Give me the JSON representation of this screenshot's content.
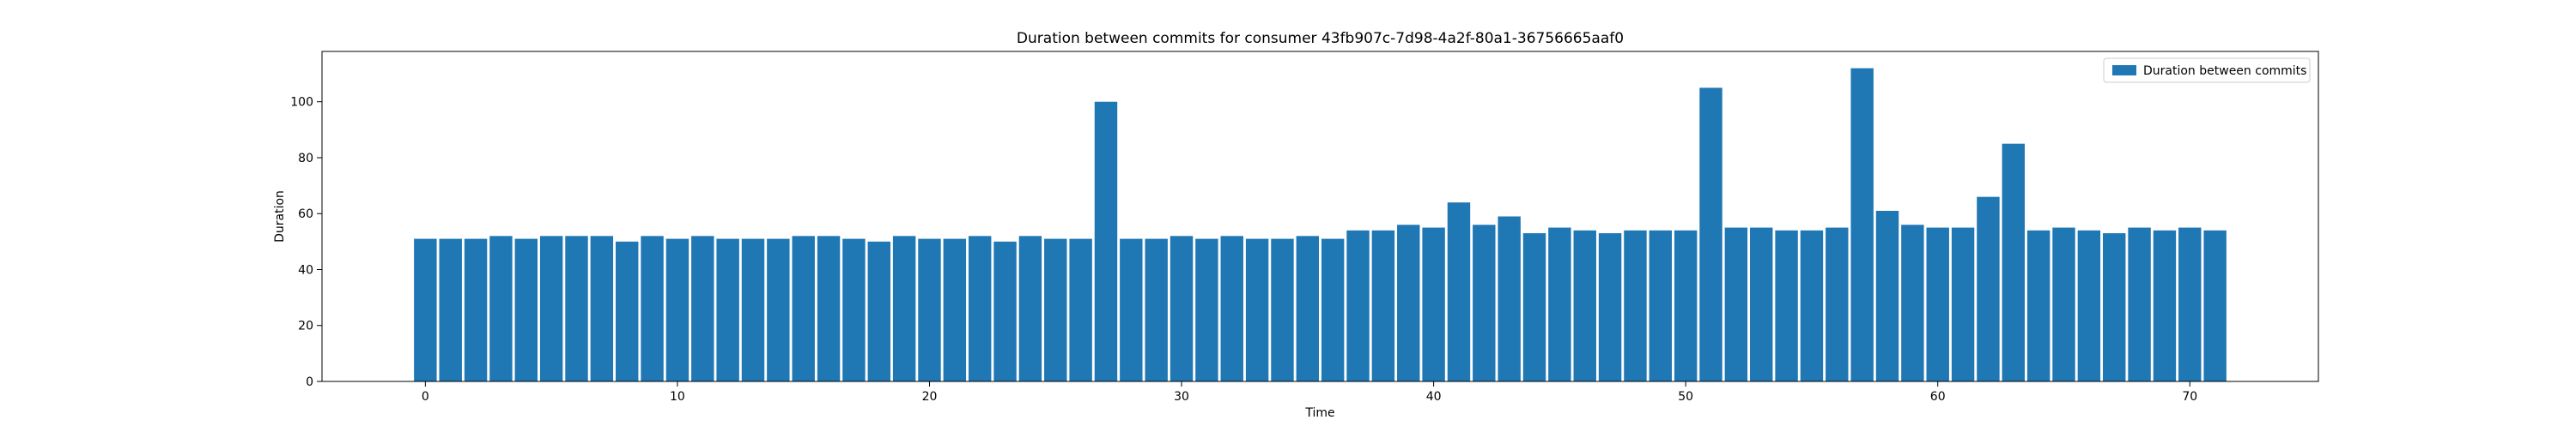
{
  "chart_data": {
    "type": "bar",
    "title": "Duration between commits for consumer 43fb907c-7d98-4a2f-80a1-36756665aaf0",
    "xlabel": "Time",
    "ylabel": "Duration",
    "legend": {
      "label": "Duration between commits",
      "placement": "top-right"
    },
    "bar_color": "#1f77b4",
    "grid": false,
    "xlim": [
      -4.1,
      75.1
    ],
    "ylim": [
      0,
      118
    ],
    "xticks": [
      0,
      10,
      20,
      30,
      40,
      50,
      60,
      70
    ],
    "yticks": [
      0,
      20,
      40,
      60,
      80,
      100
    ],
    "x": [
      0,
      1,
      2,
      3,
      4,
      5,
      6,
      7,
      8,
      9,
      10,
      11,
      12,
      13,
      14,
      15,
      16,
      17,
      18,
      19,
      20,
      21,
      22,
      23,
      24,
      25,
      26,
      27,
      28,
      29,
      30,
      31,
      32,
      33,
      34,
      35,
      36,
      37,
      38,
      39,
      40,
      41,
      42,
      43,
      44,
      45,
      46,
      47,
      48,
      49,
      50,
      51,
      52,
      53,
      54,
      55,
      56,
      57,
      58,
      59,
      60,
      61,
      62,
      63,
      64,
      65,
      66,
      67,
      68,
      69,
      70,
      71
    ],
    "values": [
      51,
      51,
      51,
      52,
      51,
      52,
      52,
      52,
      50,
      52,
      51,
      52,
      51,
      51,
      51,
      52,
      52,
      51,
      50,
      52,
      51,
      51,
      52,
      50,
      52,
      51,
      51,
      100,
      51,
      51,
      52,
      51,
      52,
      51,
      51,
      52,
      51,
      54,
      54,
      56,
      55,
      64,
      56,
      59,
      53,
      55,
      54,
      53,
      54,
      54,
      54,
      105,
      55,
      55,
      54,
      54,
      55,
      112,
      61,
      56,
      55,
      55,
      66,
      85,
      54,
      55,
      54,
      53,
      55,
      54,
      55,
      54
    ]
  }
}
